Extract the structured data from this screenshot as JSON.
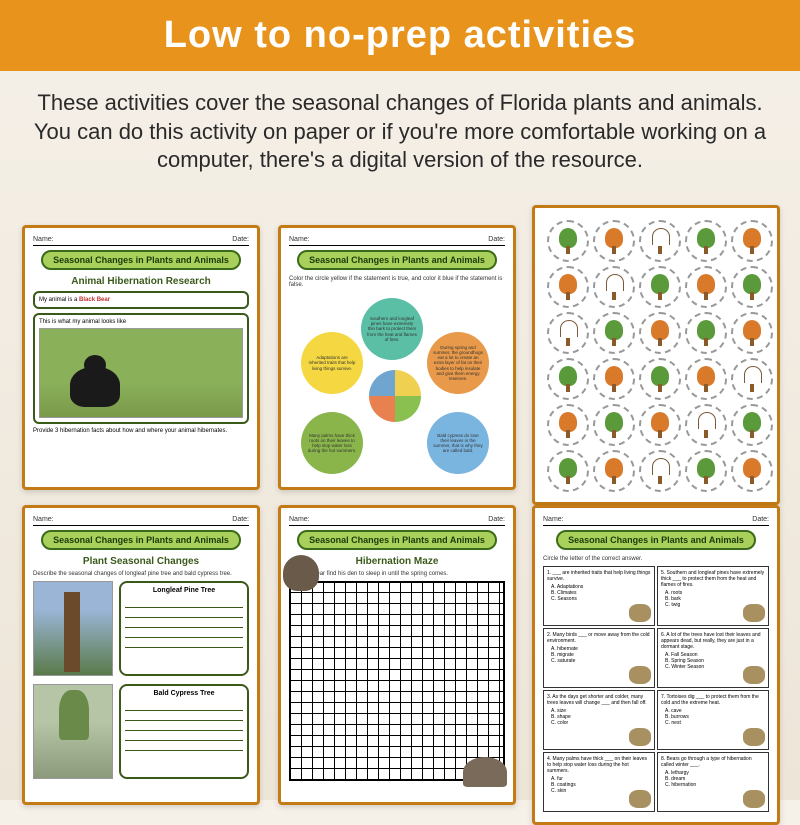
{
  "header": {
    "title": "Low to no-prep activities"
  },
  "description": "These activities cover the seasonal changes of Florida plants and animals. You can do this activity on paper or if you're more comfortable working on a computer, there's a digital version of the resource.",
  "common": {
    "name_label": "Name:",
    "date_label": "Date:",
    "badge_title": "Seasonal Changes in Plants and Animals"
  },
  "ws1": {
    "subtitle": "Animal Hibernation Research",
    "my_animal_label": "My animal is a",
    "my_animal_value": "Black Bear",
    "looks_like": "This is what my animal looks like",
    "footer": "Provide 3 hibernation facts about how and where your animal hibernates."
  },
  "ws2": {
    "instruction": "Color the circle yellow if the statement is true, and color it blue if the statement is false.",
    "circles": {
      "yellow": "Adaptations are inherited traits that help living things survive.",
      "teal": "Southern and longleaf pines have extremely thin bark to protect them from the heat and flames of fires.",
      "orange": "During spring and summer, the groundhogs eat a lot to create an extra layer of fat on their bodies to help insulate and give them energy reserves.",
      "green": "Many palms have thick roots on their leaves to help stop water loss during the hot summers.",
      "blue": "Bald cypress do lose their leaves in the summer, that is why they are called bald."
    }
  },
  "ws4": {
    "subtitle": "Plant Seasonal Changes",
    "instruction": "Describe the seasonal changes of longleaf pine tree and bald cypress tree.",
    "tree1": "Longleaf Pine Tree",
    "tree2": "Bald Cypress Tree"
  },
  "ws5": {
    "subtitle": "Hibernation Maze",
    "instruction": "Help the bear find his den to sleep in until the spring comes."
  },
  "ws6": {
    "instruction": "Circle the letter of the correct answer.",
    "questions": [
      {
        "q": "1. ___ are inherited traits that help living things survive.",
        "a": "A. Adaptations",
        "b": "B. Climates",
        "c": "C. Seasons"
      },
      {
        "q": "5. Southern and longleaf pines have extremely thick ___ to protect them from the heat and flames of fires.",
        "a": "A. roots",
        "b": "B. bark",
        "c": "C. twig"
      },
      {
        "q": "2. Many birds ___ or move away from the cold environment.",
        "a": "A. hibernate",
        "b": "B. migrate",
        "c": "C. saturate"
      },
      {
        "q": "6. A lot of the trees have lost their leaves and appears dead, but really, they are just in a dormant stage.",
        "a": "A. Fall Season",
        "b": "B. Spring Season",
        "c": "C. Winter Season"
      },
      {
        "q": "3. As the days get shorter and colder, many trees leaves will change ___ and then fall off.",
        "a": "A. size",
        "b": "B. shape",
        "c": "C. color"
      },
      {
        "q": "7. Tortoises dig ___ to protect them from the cold and the extreme heat.",
        "a": "A. cave",
        "b": "B. burrows",
        "c": "C. nest"
      },
      {
        "q": "4. Many palms have thick ___ on their leaves to help stop water loss during the hot summers.",
        "a": "A. fur",
        "b": "B. coatings",
        "c": "C. skin"
      },
      {
        "q": "8. Bears go through a type of hibernation called winter ___.",
        "a": "A. lethargy",
        "b": "B. dream",
        "c": "C. hibernation"
      }
    ]
  },
  "colors": {
    "header_bg": "#e8941c",
    "badge_bg": "#a8d05a",
    "badge_border": "#3a6b1a",
    "ws_border": "#c47a15"
  }
}
